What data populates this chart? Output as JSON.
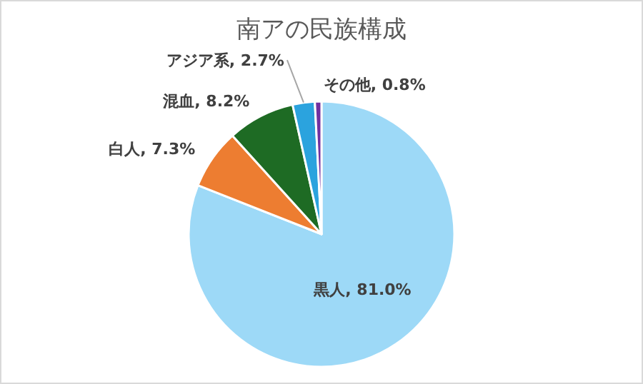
{
  "chart_data": {
    "type": "pie",
    "title": "南アの民族構成",
    "categories": [
      "黒人",
      "白人",
      "混血",
      "アジア系",
      "その他"
    ],
    "values": [
      81.0,
      7.3,
      8.2,
      2.7,
      0.8
    ],
    "value_labels": [
      "81.0%",
      "7.3%",
      "8.2%",
      "2.7%",
      "0.8%"
    ],
    "colors": [
      "#9dd9f7",
      "#ed7d31",
      "#1e6b24",
      "#2ba3de",
      "#7030a0"
    ]
  }
}
